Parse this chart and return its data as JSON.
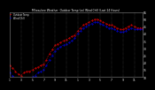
{
  "title": "Milwaukee Weather  Outdoor Temp (vs) Wind Chill (Last 24 Hours)",
  "bg_color": "#000000",
  "plot_bg_color": "#000000",
  "grid_color": "#555555",
  "temp_color": "#ff0000",
  "windchill_color": "#0000ff",
  "outdoor_color": "#000000",
  "text_color": "#ffffff",
  "ylim": [
    10,
    55
  ],
  "ytick_labels": [
    "55",
    "50",
    "45",
    "40",
    "35",
    "30",
    "25",
    "20",
    "15",
    "10"
  ],
  "ytick_values": [
    55,
    50,
    45,
    40,
    35,
    30,
    25,
    20,
    15,
    10
  ],
  "n_points": 48,
  "temp_values": [
    18,
    16,
    14,
    12,
    11,
    13,
    14,
    14,
    15,
    16,
    17,
    18,
    19,
    22,
    26,
    29,
    32,
    33,
    34,
    35,
    36,
    37,
    38,
    39,
    42,
    44,
    46,
    47,
    48,
    49,
    50,
    50,
    49,
    48,
    47,
    46,
    46,
    45,
    44,
    43,
    43,
    44,
    45,
    46,
    45,
    44,
    44,
    44
  ],
  "windchill_values": [
    13,
    11,
    9,
    8,
    7,
    8,
    9,
    9,
    10,
    11,
    13,
    14,
    15,
    18,
    22,
    25,
    28,
    30,
    31,
    32,
    33,
    34,
    35,
    37,
    40,
    42,
    44,
    45,
    46,
    47,
    48,
    48,
    47,
    46,
    45,
    44,
    44,
    43,
    42,
    41,
    41,
    42,
    43,
    44,
    43,
    43,
    43,
    43
  ],
  "x_tick_positions": [
    0,
    4,
    8,
    12,
    16,
    20,
    24,
    28,
    32,
    36,
    40,
    44
  ],
  "x_tick_labels": [
    "1",
    "3",
    "5",
    "7",
    "9",
    "11",
    "1",
    "3",
    "5",
    "7",
    "9",
    "11"
  ],
  "vgrid_positions": [
    4,
    8,
    12,
    16,
    20,
    24,
    28,
    32,
    36,
    40,
    44
  ]
}
